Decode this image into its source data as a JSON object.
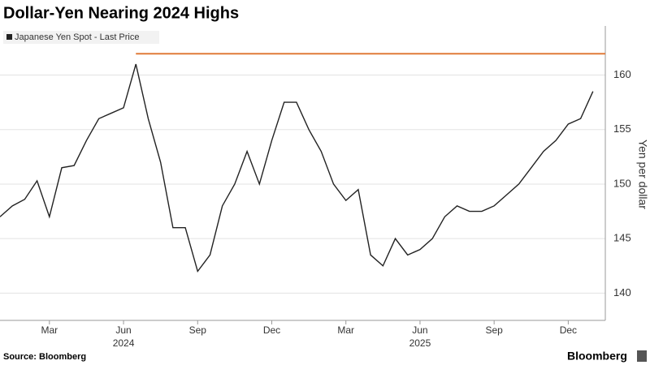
{
  "chart_data": {
    "type": "line",
    "title": "Dollar-Yen Nearing 2024 Highs",
    "source": "Source: Bloomberg",
    "brand": "Bloomberg",
    "y_label": "Yen per dollar",
    "series": [
      {
        "name": "Japanese Yen Spot - Last Price",
        "color": "#222222",
        "x": [
          0,
          0.5,
          1,
          1.5,
          2,
          2.5,
          3,
          3.5,
          4,
          4.5,
          5,
          5.5,
          6,
          6.5,
          7,
          7.5,
          8,
          8.5,
          9,
          9.5,
          10,
          10.5,
          11,
          11.5,
          12,
          12.5,
          13,
          13.5,
          14,
          14.5,
          15,
          15.5,
          16,
          16.5,
          17,
          17.5,
          18,
          18.5,
          19,
          19.5,
          20,
          20.5,
          21,
          21.5,
          22,
          22.5,
          23,
          23.5,
          24
        ],
        "values": [
          147,
          148,
          148.6,
          150.3,
          147,
          151.5,
          151.7,
          154,
          156,
          156.5,
          157,
          161,
          156,
          152,
          146,
          146,
          142,
          143.5,
          148,
          150,
          153,
          150,
          154,
          157.5,
          157.5,
          155,
          153,
          150,
          148.5,
          149.5,
          143.5,
          142.5,
          145,
          143.5,
          144,
          145,
          147,
          148,
          147.5,
          147.5,
          148,
          149,
          150,
          151.5,
          153,
          154,
          155.5,
          156,
          158.5
        ]
      }
    ],
    "reference_line": {
      "value": 161.95,
      "color": "#e07b39"
    },
    "xlim": [
      0,
      24.5
    ],
    "xticks": [
      {
        "value": 2,
        "label": "Mar"
      },
      {
        "value": 5,
        "label": "Jun"
      },
      {
        "value": 8,
        "label": "Sep"
      },
      {
        "value": 11,
        "label": "Dec"
      },
      {
        "value": 14,
        "label": "Mar"
      },
      {
        "value": 17,
        "label": "Jun"
      },
      {
        "value": 20,
        "label": "Sep"
      },
      {
        "value": 23,
        "label": "Dec"
      }
    ],
    "year_labels": [
      {
        "value": 5,
        "label": "2024"
      },
      {
        "value": 17,
        "label": "2025"
      }
    ],
    "ylim": [
      137.5,
      164.5
    ],
    "yticks": [
      140,
      145,
      150,
      155,
      160
    ],
    "grid": true
  }
}
